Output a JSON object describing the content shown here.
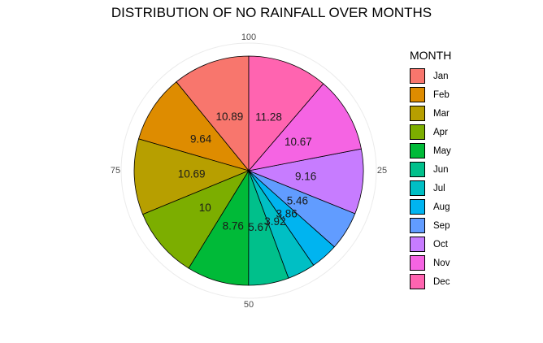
{
  "chart_data": {
    "type": "pie",
    "title": "DISTRIBUTION OF NO RAINFALL OVER MONTHS",
    "legend_title": "MONTH",
    "legend_position": "right",
    "categories": [
      "Jan",
      "Feb",
      "Mar",
      "Apr",
      "May",
      "Jun",
      "Jul",
      "Aug",
      "Sep",
      "Oct",
      "Nov",
      "Dec"
    ],
    "values": [
      10.89,
      9.64,
      10.69,
      10,
      8.76,
      5.67,
      3.92,
      3.86,
      5.46,
      9.16,
      10.67,
      11.28
    ],
    "labels": [
      "10.89",
      "9.64",
      "10.69",
      "10",
      "8.76",
      "5.67",
      "3.92",
      "3.86",
      "5.46",
      "9.16",
      "10.67",
      "11.28"
    ],
    "colors": [
      "#F8766D",
      "#DE8C00",
      "#B79F00",
      "#7CAE00",
      "#00BA38",
      "#00C08B",
      "#00BFC4",
      "#00B4F0",
      "#619CFF",
      "#C77CFF",
      "#F564E3",
      "#FF64B0"
    ],
    "direction": "counterclockwise",
    "angle_axis_ticks": [
      "100",
      "75",
      "50",
      "25"
    ],
    "grid": true
  }
}
